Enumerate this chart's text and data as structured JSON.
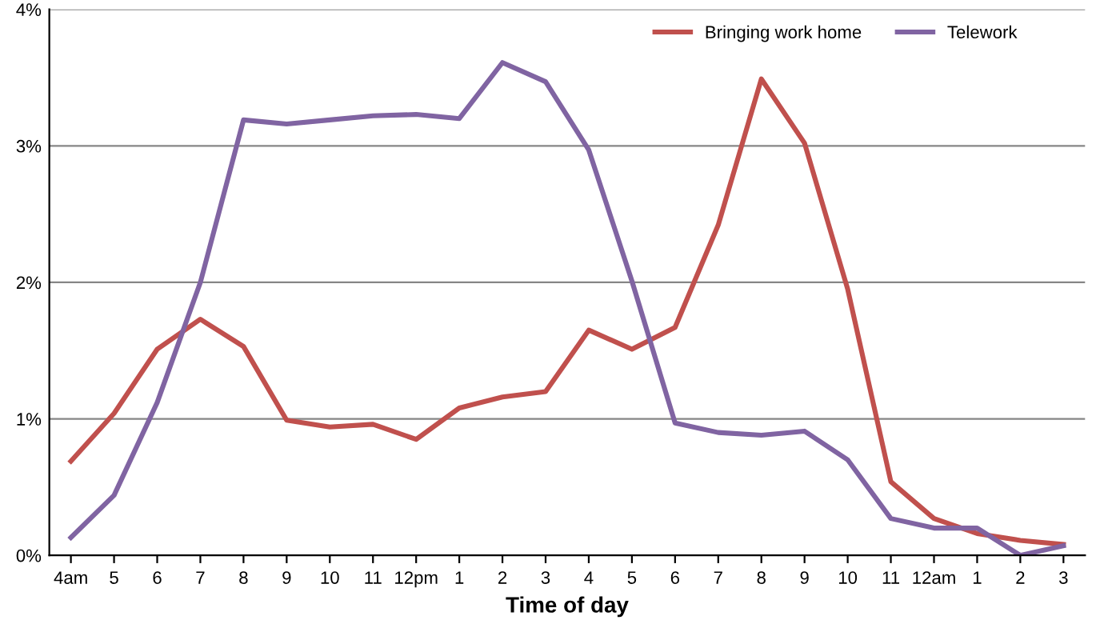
{
  "chart_data": {
    "type": "line",
    "xlabel": "Time of day",
    "categories": [
      "4am",
      "5",
      "6",
      "7",
      "8",
      "9",
      "10",
      "11",
      "12pm",
      "1",
      "2",
      "3",
      "4",
      "5",
      "6",
      "7",
      "8",
      "9",
      "10",
      "11",
      "12am",
      "1",
      "2",
      "3"
    ],
    "series": [
      {
        "name": "Bringing work home",
        "color": "#c0504d",
        "values": [
          0.69,
          1.04,
          1.51,
          1.73,
          1.53,
          0.99,
          0.94,
          0.96,
          0.85,
          1.08,
          1.16,
          1.2,
          1.65,
          1.51,
          1.67,
          2.42,
          3.49,
          3.02,
          1.95,
          0.54,
          0.27,
          0.16,
          0.11,
          0.08
        ]
      },
      {
        "name": "Telework",
        "color": "#8064a2",
        "values": [
          0.13,
          0.44,
          1.12,
          2.0,
          3.19,
          3.16,
          3.19,
          3.22,
          3.23,
          3.2,
          3.61,
          3.47,
          2.97,
          2.01,
          0.97,
          0.9,
          0.88,
          0.91,
          0.7,
          0.27,
          0.2,
          0.2,
          0.0,
          0.07
        ]
      }
    ],
    "ylim": [
      0,
      4
    ],
    "yticks": [
      {
        "value": 0,
        "label": "0%"
      },
      {
        "value": 1,
        "label": "1%"
      },
      {
        "value": 2,
        "label": "2%"
      },
      {
        "value": 3,
        "label": "3%"
      },
      {
        "value": 4,
        "label": "4%"
      }
    ],
    "grid": "y",
    "legend": "top right",
    "marker": "none",
    "line_style": "solid"
  }
}
